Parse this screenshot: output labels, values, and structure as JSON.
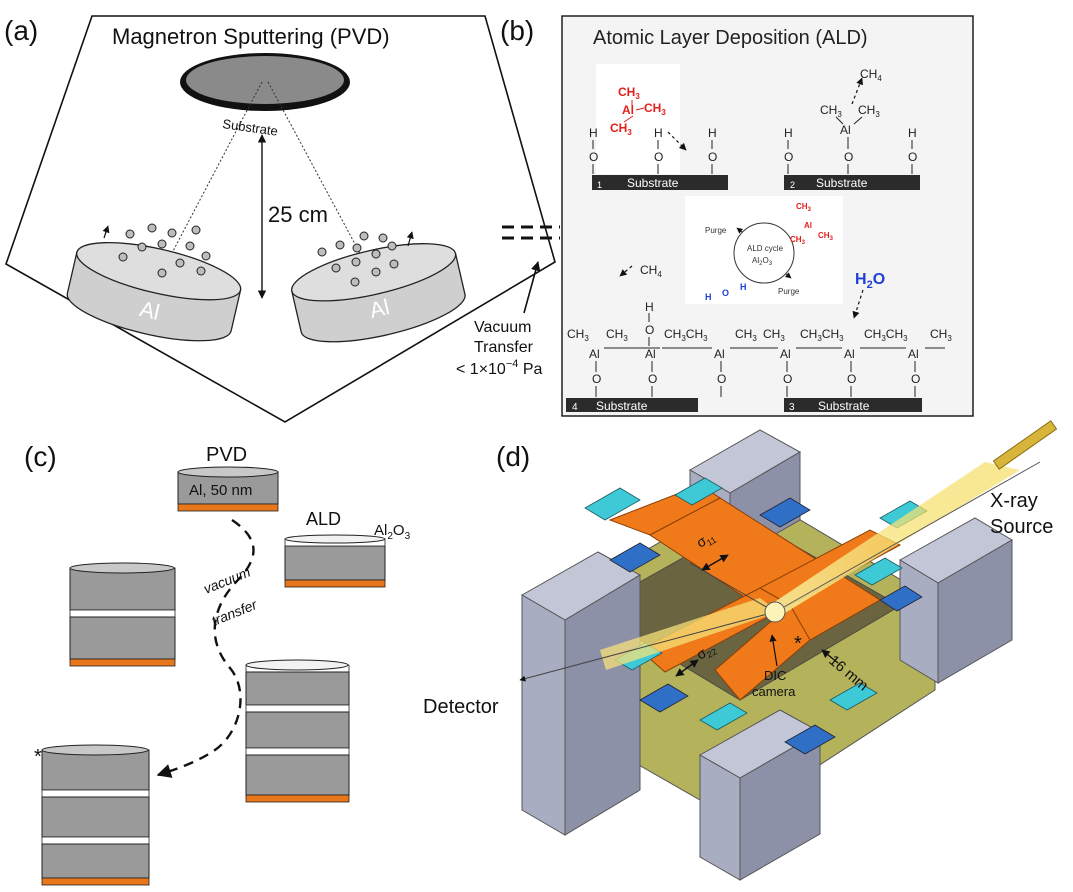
{
  "panels": {
    "a": {
      "label": "(a)",
      "title": "Magnetron Sputtering (PVD)",
      "substrate": "Substrate",
      "distance": "25 cm",
      "target_left": "Al",
      "target_right": "Al"
    },
    "b": {
      "label": "(b)",
      "title": "Atomic Layer Deposition (ALD)",
      "step1": "1",
      "step2": "2",
      "step3": "3",
      "step4": "4",
      "substrate": "Substrate",
      "ch3": "CH",
      "sub3": "3",
      "ch4": "CH",
      "sub4": "4",
      "al": "Al",
      "o": "O",
      "h": "H",
      "h2o": "H",
      "h2o_sub": "2",
      "h2o_o": "O",
      "cycle_line1": "ALD cycle",
      "cycle_line2": "Al",
      "cycle_sub2": "2",
      "cycle_o": "O",
      "cycle_sub3": "3",
      "purge_top": "Purge",
      "purge_bottom": "Purge"
    },
    "vacuum": {
      "line1": "Vacuum",
      "line2": "Transfer",
      "line3a": "< 1×10",
      "line3_exp": "−4",
      "line3b": " Pa"
    },
    "c": {
      "label": "(c)",
      "pvd": "PVD",
      "al_thickness": "Al, 50 nm",
      "ald": "ALD",
      "al2o3_a": "Al",
      "al2o3_b": "2",
      "al2o3_c": "O",
      "al2o3_d": "3",
      "vacuum_word": "vacuum",
      "transfer_word": "transfer",
      "asterisk": "*"
    },
    "d": {
      "label": "(d)",
      "xray1": "X-ray",
      "xray2": "Source",
      "detector": "Detector",
      "dic1": "DIC",
      "dic2": "camera",
      "sigma11": "σ",
      "sigma11_sub": "11",
      "sigma22": "σ",
      "sigma22_sub": "22",
      "length": "16 mm",
      "asterisk": "*"
    }
  },
  "colors": {
    "substrate_bar": "#2b2b2b",
    "methyl_red": "#e0201b",
    "water_blue": "#1f3fd6",
    "cylinder_gray": "#9a9a9a",
    "cylinder_top": "#c8c8c8",
    "orange_base": "#e8761b",
    "rig_orange": "#f07a1a",
    "rig_cyan": "#3ec9d6",
    "rig_gray": "#a9adc2",
    "rig_olive": "#b4b25a",
    "beam_yellow": "#f4e27a"
  }
}
